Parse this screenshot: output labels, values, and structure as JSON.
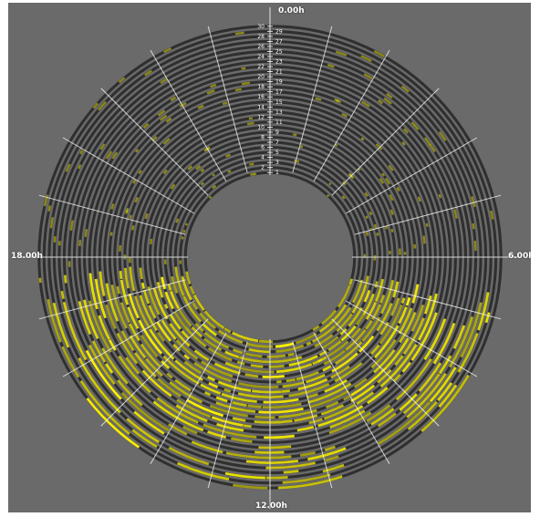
{
  "chart_data": {
    "type": "radial_heatmap",
    "description_units": "days (rings) vs. hour of day (angle)",
    "hour_labels": [
      "0.00h",
      "6.00h",
      "12.00h",
      "18.00h"
    ],
    "day_ticks_left": [
      "2",
      "4",
      "6",
      "8",
      "10",
      "12",
      "14",
      "16",
      "18",
      "20",
      "22",
      "24",
      "26",
      "28",
      "30"
    ],
    "day_ticks_right": [
      "1",
      "3",
      "5",
      "7",
      "9",
      "11",
      "13",
      "15",
      "17",
      "19",
      "21",
      "23",
      "25",
      "27",
      "29"
    ],
    "days": 30,
    "angle_direction": "clockwise",
    "activity_color": "#e6e000",
    "ring_color": "#2f2f2f",
    "active_window": {
      "description": "dense activity roughly from ~7.00h to ~17.30h on most days; sparser outside",
      "start_hour": 7.2,
      "end_hour": 17.4
    },
    "background_color": "#6a6a6a"
  },
  "labels": {
    "top": "0.00h",
    "right": "6.00h",
    "bottom": "12.00h",
    "left": "18.00h"
  }
}
